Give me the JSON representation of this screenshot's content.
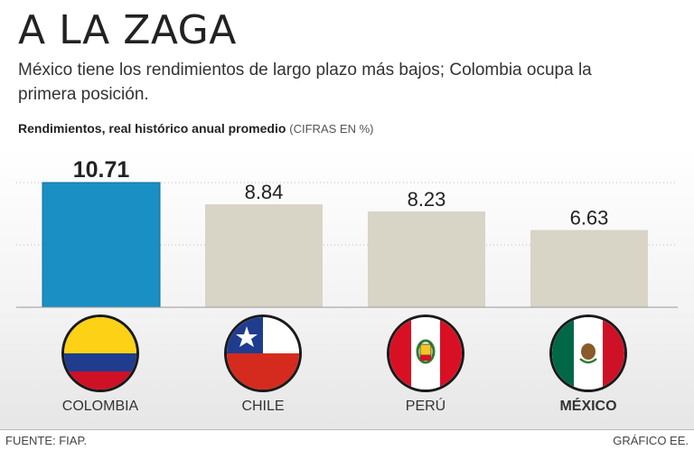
{
  "title": "A LA ZAGA",
  "subtitle": "México tiene los rendimientos de largo plazo más bajos; Colombia ocupa la primera posición.",
  "chart_header": {
    "label": "Rendimientos, real histórico anual promedio",
    "units": "(CIFRAS EN %)"
  },
  "colors": {
    "highlight": "#1a8fc4",
    "bar": "#d8d4c6",
    "grid": "#bdbdbd"
  },
  "chart_data": {
    "type": "bar",
    "title": "Rendimientos, real histórico anual promedio",
    "units": "%",
    "categories": [
      "COLOMBIA",
      "CHILE",
      "PERÚ",
      "MÉXICO"
    ],
    "values": [
      10.71,
      8.84,
      8.23,
      6.63
    ],
    "value_labels": [
      "10.71",
      "8.84",
      "8.23",
      "6.63"
    ],
    "highlight_index": 0,
    "ylim": [
      0,
      11
    ],
    "grid": true
  },
  "countries": [
    {
      "name": "COLOMBIA",
      "flag": "colombia-flag-icon"
    },
    {
      "name": "CHILE",
      "flag": "chile-flag-icon"
    },
    {
      "name": "PERÚ",
      "flag": "peru-flag-icon"
    },
    {
      "name": "MÉXICO",
      "flag": "mexico-flag-icon"
    }
  ],
  "footer": {
    "source": "FUENTE: FIAP.",
    "credit": "GRÁFICO EE."
  }
}
